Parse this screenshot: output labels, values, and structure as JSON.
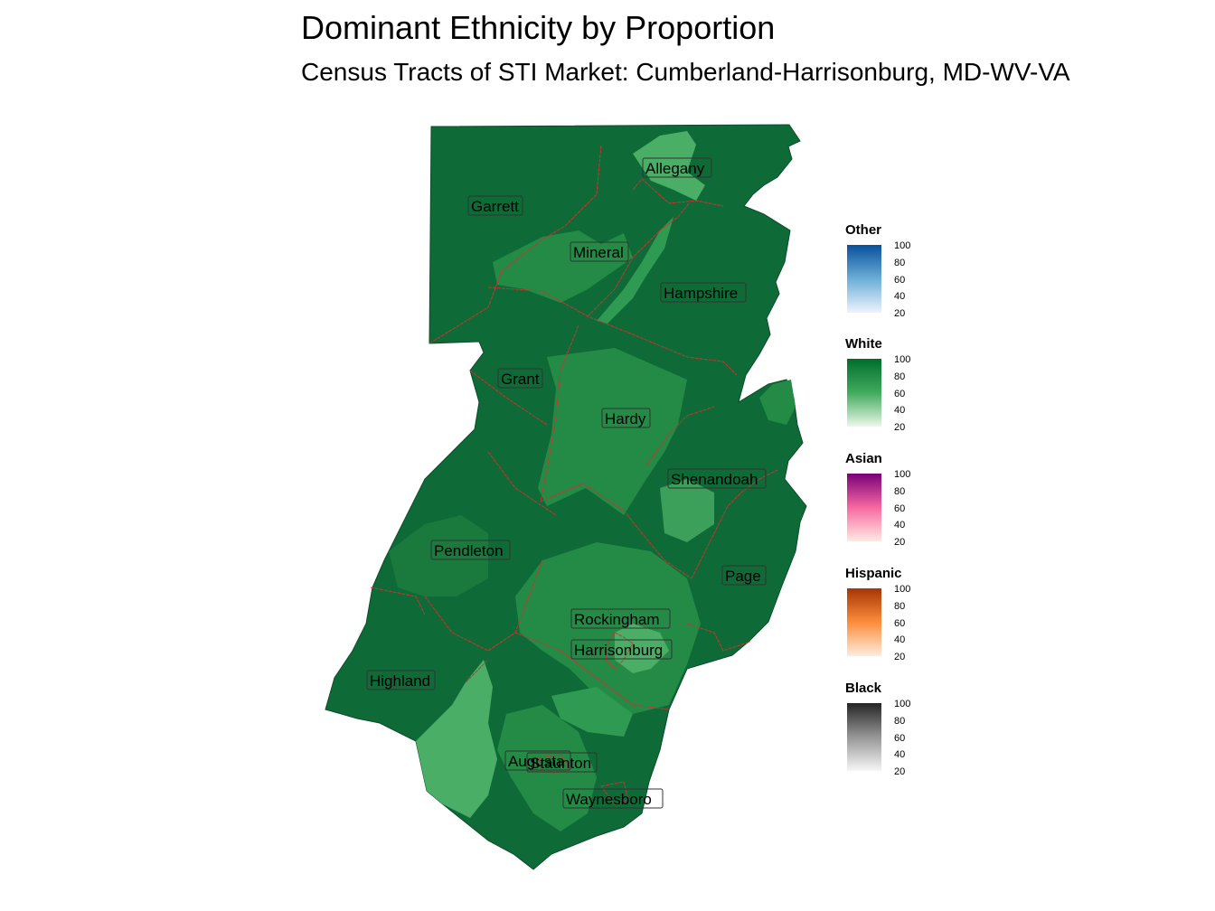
{
  "title": "Dominant Ethnicity by Proportion",
  "subtitle": "Census Tracts of STI Market: Cumberland-Harrisonburg, MD-WV-VA",
  "counties": [
    "Allegany",
    "Garrett",
    "Mineral",
    "Hampshire",
    "Grant",
    "Hardy",
    "Shenandoah",
    "Pendleton",
    "Page",
    "Rockingham",
    "Harrisonburg",
    "Highland",
    "Augusta",
    "Staunton",
    "Waynesboro"
  ],
  "legend": [
    {
      "title": "Other",
      "ticks": [
        "100",
        "80",
        "60",
        "40",
        "20"
      ],
      "color_high": "#08519c",
      "color_low": "#eff3ff"
    },
    {
      "title": "White",
      "ticks": [
        "100",
        "80",
        "60",
        "40",
        "20"
      ],
      "color_high": "#006d2c",
      "color_low": "#edf8e9"
    },
    {
      "title": "Asian",
      "ticks": [
        "100",
        "80",
        "60",
        "40",
        "20"
      ],
      "color_high": "#7a0177",
      "color_low": "#feebe2"
    },
    {
      "title": "Hispanic",
      "ticks": [
        "100",
        "80",
        "60",
        "40",
        "20"
      ],
      "color_high": "#a63603",
      "color_low": "#feedde"
    },
    {
      "title": "Black",
      "ticks": [
        "100",
        "80",
        "60",
        "40",
        "20"
      ],
      "color_high": "#252525",
      "color_low": "#f7f7f7"
    }
  ],
  "colors": {
    "white_dark": "#0e6b37",
    "white_mid": "#238b45",
    "white_light": "#4bae66",
    "border": "#cc3333"
  }
}
